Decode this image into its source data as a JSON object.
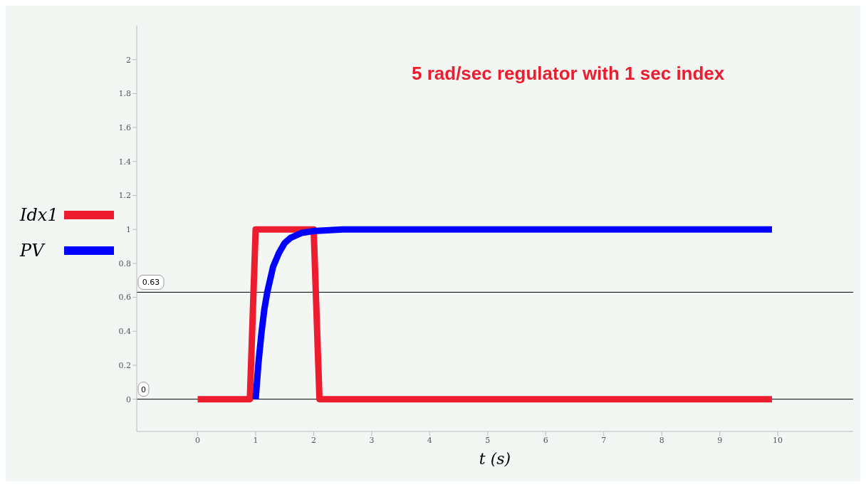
{
  "chart_data": {
    "type": "line",
    "xlabel": "t (s)",
    "annotations": [
      "5 rad/sec regulator with 1 sec index"
    ],
    "xlim": [
      -1.05,
      11.3
    ],
    "ylim": [
      -0.19,
      2.2
    ],
    "xticks": [
      0,
      1,
      2,
      3,
      4,
      5,
      6,
      7,
      8,
      9,
      10
    ],
    "yticks": [
      0,
      0.2,
      0.4,
      0.6,
      0.8,
      1,
      1.2,
      1.4,
      1.6,
      1.8,
      2
    ],
    "grid": false,
    "legend": "left",
    "marker": "none",
    "line_style": "solid",
    "ref_lines": [
      {
        "axis": "y",
        "value": 0.63,
        "label": "0.63",
        "color": "#000000"
      },
      {
        "axis": "y",
        "value": 0,
        "label": "0",
        "color": "#000000"
      }
    ],
    "series": [
      {
        "name": "Idx1",
        "color": "#ed1c2e",
        "x": [
          0,
          0.9,
          1.0,
          2.0,
          2.1,
          9.9
        ],
        "values": [
          0,
          0,
          1,
          1,
          0,
          0
        ]
      },
      {
        "name": "PV",
        "color": "#0000ff",
        "x": [
          1.0,
          1.05,
          1.1,
          1.15,
          1.2,
          1.3,
          1.4,
          1.5,
          1.6,
          1.8,
          2.0,
          2.5,
          9.9
        ],
        "values": [
          0,
          0.22,
          0.39,
          0.53,
          0.63,
          0.78,
          0.86,
          0.92,
          0.95,
          0.98,
          0.99,
          1,
          1
        ]
      }
    ]
  }
}
